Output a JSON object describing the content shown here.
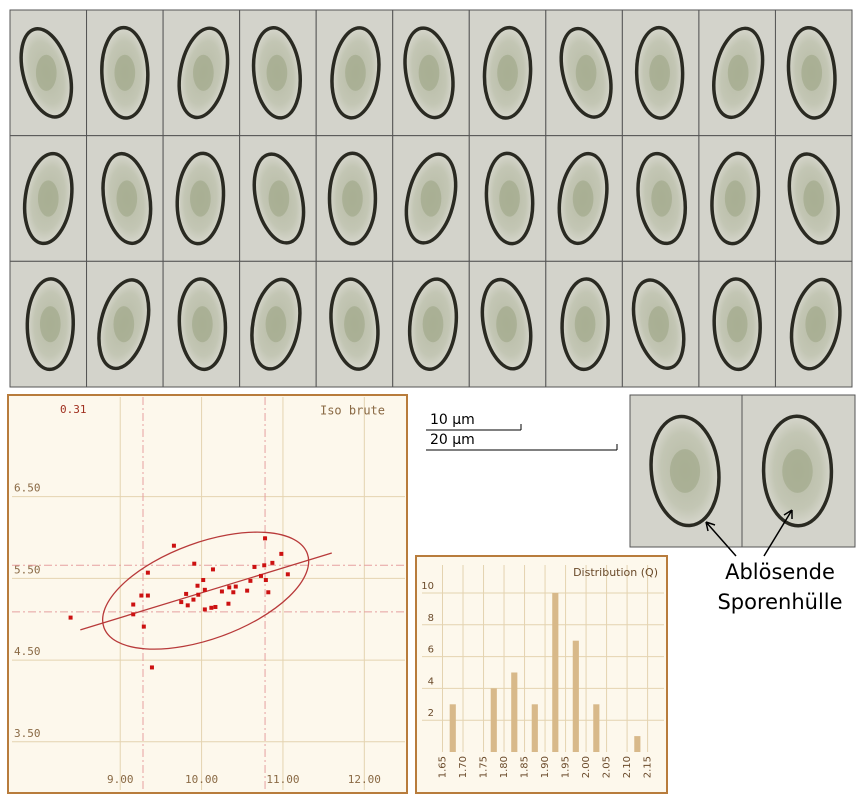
{
  "scatter": {
    "chart_data": {
      "type": "scatter",
      "title": "Iso brute",
      "annotation": "0.31",
      "x": [
        8.39,
        9.16,
        9.16,
        9.26,
        9.34,
        9.34,
        9.29,
        9.39,
        9.66,
        9.75,
        9.81,
        9.83,
        9.91,
        9.9,
        9.95,
        9.96,
        10.02,
        10.04,
        10.04,
        10.12,
        10.17,
        10.14,
        10.25,
        10.33,
        10.34,
        10.42,
        10.39,
        10.56,
        10.6,
        10.65,
        10.73,
        10.77,
        10.78,
        10.79,
        10.82,
        10.87,
        10.98,
        11.06
      ],
      "values": [
        5.02,
        5.18,
        5.06,
        5.29,
        5.29,
        5.57,
        4.91,
        4.41,
        5.9,
        5.21,
        5.31,
        5.17,
        5.68,
        5.24,
        5.41,
        5.3,
        5.48,
        5.36,
        5.12,
        5.14,
        5.15,
        5.61,
        5.34,
        5.19,
        5.39,
        5.4,
        5.33,
        5.35,
        5.47,
        5.64,
        5.53,
        5.66,
        5.99,
        5.48,
        5.33,
        5.69,
        5.8,
        5.55
      ],
      "color": "#cc1111",
      "xlim": [
        7.67,
        12.5
      ],
      "ylim": [
        2.91,
        7.72
      ],
      "xticks": [
        {
          "value": 9,
          "label": "9.00"
        },
        {
          "value": 10,
          "label": "10.00"
        },
        {
          "value": 11,
          "label": "11.00"
        },
        {
          "value": 12,
          "label": "12.00"
        }
      ],
      "yticks": [
        {
          "value": 3.5,
          "label": "3.50"
        },
        {
          "value": 4.5,
          "label": "4.50"
        },
        {
          "value": 5.5,
          "label": "5.50"
        },
        {
          "value": 6.5,
          "label": "6.50"
        }
      ],
      "xrefs": [
        9.28,
        10.78
      ],
      "yrefs": [
        5.09,
        5.66
      ],
      "trend": {
        "x": [
          8.51,
          11.6
        ],
        "y": [
          4.87,
          5.81
        ]
      },
      "ellipse": {
        "cx": 10.05,
        "cy": 5.35,
        "a": 1.33,
        "b": 0.59,
        "angle": 20
      },
      "grid": true
    }
  },
  "histogram": {
    "chart_data": {
      "type": "histogram",
      "title": "Distribution (Q)",
      "bins": [
        1.65,
        1.7,
        1.75,
        1.8,
        1.85,
        1.9,
        1.95,
        2.0,
        2.05,
        2.1,
        2.15
      ],
      "values": [
        3,
        0,
        4,
        5,
        3,
        10,
        7,
        3,
        0,
        1
      ],
      "color": "#d8b98a",
      "xlim": [
        1.6,
        2.19
      ],
      "ylim": [
        0,
        11.76
      ],
      "xticks": [
        1.65,
        {
          "value": 1.7,
          "label": "1.70"
        },
        1.75,
        {
          "value": 1.8,
          "label": "1.80"
        },
        1.85,
        {
          "value": 1.9,
          "label": "1.90"
        },
        1.95,
        {
          "value": 2.0,
          "label": "2.00"
        },
        2.05,
        {
          "value": 2.1,
          "label": "2.10"
        },
        2.15
      ],
      "yticks": [
        2,
        4,
        6,
        8,
        10
      ],
      "grid": true
    }
  },
  "scale_bars": [
    "10 µm",
    "20 µm"
  ],
  "caption": [
    "Ablösende",
    "Sporenhülle"
  ]
}
